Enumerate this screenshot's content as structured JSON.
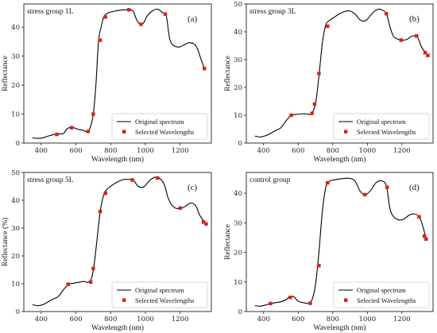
{
  "chart_data": [
    {
      "type": "line",
      "title": "stress group 1L",
      "letter": "(a)",
      "xlabel": "Wavelength (nm)",
      "ylabel": "Reflectance",
      "xlim": [
        300,
        1380
      ],
      "ylim": [
        0,
        48
      ],
      "xticks": [
        400,
        600,
        800,
        1000,
        1200,
        1400
      ],
      "yticks": [
        0,
        10,
        20,
        30,
        40
      ],
      "legend_position": "bottom-right",
      "series": [
        {
          "name": "Original spectrum",
          "color": "#000000",
          "x": [
            350,
            380,
            410,
            440,
            470,
            500,
            530,
            550,
            580,
            610,
            640,
            660,
            680,
            700,
            715,
            730,
            745,
            760,
            780,
            800,
            830,
            860,
            890,
            910,
            930,
            950,
            970,
            990,
            1010,
            1040,
            1070,
            1100,
            1120,
            1140,
            1160,
            1180,
            1200,
            1220,
            1250,
            1280,
            1300,
            1320,
            1340
          ],
          "y": [
            1.8,
            1.6,
            1.8,
            2.4,
            2.9,
            3.1,
            3.4,
            5.0,
            5.4,
            4.8,
            4.4,
            4.0,
            5.0,
            10.0,
            20.0,
            35.0,
            40.0,
            43.5,
            44.8,
            45.2,
            45.6,
            45.9,
            46.0,
            46.0,
            45.5,
            42.5,
            41.0,
            41.5,
            43.8,
            45.6,
            46.2,
            45.0,
            44.0,
            36.0,
            33.8,
            33.2,
            33.2,
            33.8,
            34.6,
            34.2,
            32.5,
            29.0,
            25.7
          ]
        },
        {
          "name": "Selected Wavelengths",
          "color": "#e01c1c",
          "x": [
            490,
            575,
            670,
            700,
            740,
            770,
            905,
            975,
            1115,
            1340
          ],
          "y": [
            3.0,
            5.3,
            4.0,
            10.0,
            35.5,
            43.5,
            46.0,
            41.0,
            44.5,
            25.7
          ]
        }
      ]
    },
    {
      "type": "line",
      "title": "stress group 3L",
      "letter": "(b)",
      "xlabel": "Wavelength (nm)",
      "ylabel": "Reflectance",
      "xlim": [
        300,
        1380
      ],
      "ylim": [
        0,
        50
      ],
      "xticks": [
        400,
        600,
        800,
        1000,
        1200,
        1400
      ],
      "yticks": [
        0,
        10,
        20,
        30,
        40,
        50
      ],
      "legend_position": "bottom-right",
      "series": [
        {
          "name": "Original spectrum",
          "color": "#000000",
          "x": [
            350,
            380,
            410,
            440,
            470,
            500,
            530,
            560,
            590,
            620,
            650,
            670,
            690,
            705,
            720,
            740,
            760,
            780,
            810,
            840,
            870,
            900,
            930,
            960,
            990,
            1020,
            1050,
            1080,
            1110,
            1130,
            1150,
            1170,
            1200,
            1230,
            1260,
            1290,
            1310,
            1330,
            1350
          ],
          "y": [
            2.5,
            2.2,
            2.6,
            3.5,
            4.5,
            5.5,
            8.0,
            10.0,
            10.3,
            10.5,
            10.5,
            10.3,
            12.0,
            16.0,
            24.0,
            36.0,
            42.5,
            44.0,
            45.3,
            46.5,
            47.3,
            47.5,
            46.3,
            44.2,
            44.0,
            46.0,
            47.8,
            48.0,
            46.5,
            42.0,
            38.5,
            37.5,
            37.0,
            37.3,
            38.5,
            38.0,
            35.0,
            33.0,
            31.5
          ]
        },
        {
          "name": "Selected Wavelengths",
          "color": "#e01c1c",
          "x": [
            560,
            680,
            695,
            720,
            770,
            1110,
            1195,
            1285,
            1335,
            1350
          ],
          "y": [
            10.0,
            10.7,
            14.0,
            25.0,
            42.0,
            46.5,
            37.0,
            38.5,
            32.5,
            31.5
          ]
        }
      ]
    },
    {
      "type": "line",
      "title": "stress group 5L",
      "letter": "(c)",
      "xlabel": "Wavelength (nm)",
      "ylabel": "Reflectance (%)",
      "xlim": [
        300,
        1380
      ],
      "ylim": [
        0,
        50
      ],
      "xticks": [
        400,
        600,
        800,
        1000,
        1200,
        1400
      ],
      "yticks": [
        0,
        10,
        20,
        30,
        40,
        50
      ],
      "legend_position": "bottom-right",
      "series": [
        {
          "name": "Original spectrum",
          "color": "#000000",
          "x": [
            350,
            380,
            410,
            440,
            470,
            500,
            530,
            560,
            590,
            620,
            650,
            670,
            690,
            705,
            720,
            740,
            760,
            780,
            810,
            840,
            870,
            900,
            930,
            960,
            990,
            1020,
            1050,
            1080,
            1110,
            1130,
            1150,
            1170,
            1200,
            1230,
            1260,
            1290,
            1310,
            1330,
            1350
          ],
          "y": [
            2.5,
            2.1,
            2.5,
            3.5,
            4.5,
            5.5,
            8.0,
            9.8,
            10.2,
            10.6,
            10.8,
            10.5,
            12.0,
            17.0,
            25.0,
            36.0,
            42.0,
            44.0,
            45.5,
            46.6,
            47.4,
            47.5,
            47.2,
            45.0,
            44.8,
            46.8,
            48.2,
            48.0,
            45.5,
            41.0,
            38.5,
            37.3,
            37.0,
            37.8,
            39.0,
            38.0,
            35.0,
            33.0,
            31.5
          ]
        },
        {
          "name": "Selected Wavelengths",
          "color": "#e01c1c",
          "x": [
            555,
            685,
            700,
            740,
            770,
            925,
            1070,
            1200,
            1335,
            1350
          ],
          "y": [
            9.8,
            10.6,
            15.5,
            36.0,
            42.5,
            47.3,
            48.0,
            37.2,
            32.2,
            31.5
          ]
        }
      ]
    },
    {
      "type": "line",
      "title": "control group",
      "letter": "(d)",
      "xlabel": "Wavelength (nm)",
      "ylabel": "Reflectance",
      "xlim": [
        300,
        1380
      ],
      "ylim": [
        0,
        47
      ],
      "xticks": [
        400,
        600,
        800,
        1000,
        1200,
        1400
      ],
      "yticks": [
        0,
        10,
        20,
        30,
        40
      ],
      "legend_position": "bottom-right",
      "series": [
        {
          "name": "Original spectrum",
          "color": "#000000",
          "x": [
            350,
            380,
            410,
            440,
            470,
            500,
            530,
            550,
            575,
            600,
            630,
            660,
            680,
            700,
            720,
            740,
            760,
            780,
            810,
            840,
            870,
            900,
            930,
            960,
            990,
            1020,
            1050,
            1080,
            1110,
            1130,
            1150,
            1180,
            1210,
            1240,
            1270,
            1300,
            1320,
            1340
          ],
          "y": [
            2.0,
            1.8,
            2.2,
            2.7,
            3.0,
            3.3,
            4.0,
            5.0,
            5.0,
            3.5,
            3.0,
            2.8,
            4.0,
            9.0,
            20.0,
            34.0,
            42.0,
            44.0,
            44.5,
            44.8,
            45.0,
            45.0,
            44.0,
            40.5,
            39.5,
            41.0,
            43.5,
            44.2,
            42.5,
            35.0,
            32.2,
            31.0,
            31.2,
            32.5,
            33.0,
            32.0,
            29.0,
            24.5
          ]
        },
        {
          "name": "Selected Wavelengths",
          "color": "#e01c1c",
          "x": [
            440,
            555,
            670,
            720,
            770,
            985,
            1115,
            1300,
            1330,
            1340
          ],
          "y": [
            2.7,
            4.8,
            2.8,
            15.5,
            43.5,
            39.5,
            42.0,
            32.0,
            25.5,
            24.5
          ]
        }
      ]
    }
  ]
}
